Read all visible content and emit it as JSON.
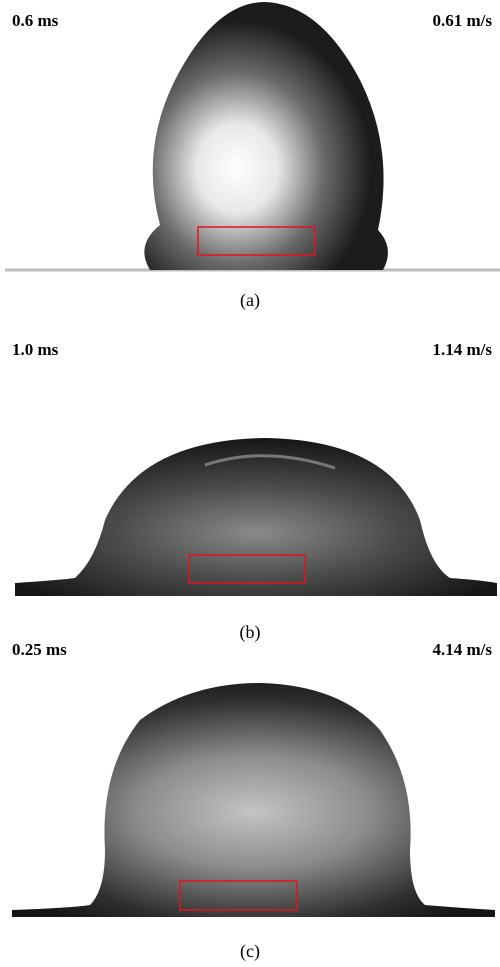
{
  "panels": [
    {
      "time": "0.6 ms",
      "speed": "0.61 m/s",
      "caption": "(a)"
    },
    {
      "time": "1.0 ms",
      "speed": "1.14 m/s",
      "caption": "(b)"
    },
    {
      "time": "0.25 ms",
      "speed": "4.14 m/s",
      "caption": "(c)"
    }
  ]
}
